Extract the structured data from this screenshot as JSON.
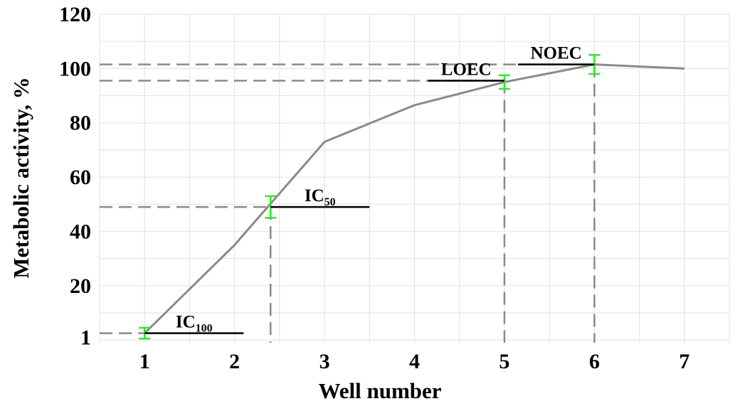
{
  "chart_data": {
    "type": "line",
    "xlabel": "Well number",
    "ylabel": "Metabolic activity, %",
    "x_ticks": [
      "1",
      "2",
      "3",
      "4",
      "5",
      "6",
      "7"
    ],
    "y_ticks": [
      "1",
      "20",
      "40",
      "60",
      "80",
      "100",
      "120"
    ],
    "y_tick_values": [
      1,
      20,
      40,
      60,
      80,
      100,
      120
    ],
    "xlim": [
      0.5,
      7.5
    ],
    "ylim": [
      -1,
      120
    ],
    "grid": true,
    "series": [
      {
        "color": "#8a8a8a",
        "x": [
          1,
          2,
          3,
          4,
          5,
          6,
          7
        ],
        "y": [
          2.5,
          35,
          73,
          86.5,
          95,
          101.5,
          100
        ]
      }
    ],
    "error_bars": [
      {
        "x": 1,
        "y": 2.5,
        "lo": 0.5,
        "hi": 4.5
      },
      {
        "x": 2.4,
        "y": 49,
        "lo": 45,
        "hi": 53
      },
      {
        "x": 5,
        "y": 95,
        "lo": 92.5,
        "hi": 97.5
      },
      {
        "x": 6,
        "y": 101.5,
        "lo": 98,
        "hi": 105
      }
    ],
    "error_bar_color": "#2ee82e",
    "annotations": [
      {
        "label": "IC",
        "sub": "100",
        "x": 1,
        "y": 2.5,
        "seg": [
          1,
          2.1
        ]
      },
      {
        "label": "IC",
        "sub": "50",
        "x": 2.4,
        "y": 49,
        "seg": [
          2.4,
          3.5
        ]
      },
      {
        "label": "LOEC",
        "sub": "",
        "x": 5,
        "y": 95.5,
        "seg": [
          4.15,
          5
        ]
      },
      {
        "label": "NOEC",
        "sub": "",
        "x": 6,
        "y": 101.5,
        "seg": [
          5.15,
          6
        ]
      }
    ]
  }
}
